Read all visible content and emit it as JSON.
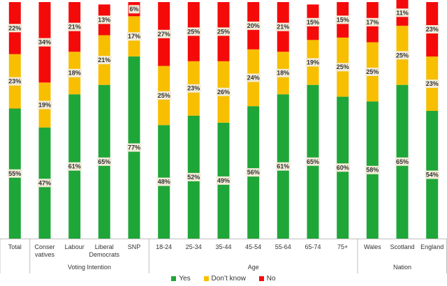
{
  "chart_data": {
    "type": "bar",
    "stacked": true,
    "percent_stacked": true,
    "categories": [
      "Total",
      "Conser vatives",
      "Labour",
      "Liberal Democrats",
      "SNP",
      "18-24",
      "25-34",
      "35-44",
      "45-54",
      "55-64",
      "65-74",
      "75+",
      "Wales",
      "Scotland",
      "England"
    ],
    "groups": [
      {
        "name": "",
        "categories": [
          "Total"
        ]
      },
      {
        "name": "Voting Intention",
        "categories": [
          "Conser vatives",
          "Labour",
          "Liberal Democrats",
          "SNP"
        ]
      },
      {
        "name": "Age",
        "categories": [
          "18-24",
          "25-34",
          "35-44",
          "45-54",
          "55-64",
          "65-74",
          "75+"
        ]
      },
      {
        "name": "Nation",
        "categories": [
          "Wales",
          "Scotland",
          "England"
        ]
      }
    ],
    "series": [
      {
        "name": "Yes",
        "color": "#1fa638",
        "values": [
          55,
          47,
          61,
          65,
          77,
          48,
          52,
          49,
          56,
          61,
          65,
          60,
          58,
          65,
          54
        ],
        "labels": [
          "55%",
          "47%",
          "61%",
          "65%",
          "77%",
          "48%",
          "52%",
          "49%",
          "56%",
          "61%",
          "65%",
          "60%",
          "58%",
          "65%",
          "54%"
        ]
      },
      {
        "name": "Don't know",
        "color": "#f7bf00",
        "values": [
          23,
          19,
          18,
          21,
          17,
          25,
          23,
          26,
          24,
          18,
          19,
          25,
          25,
          25,
          23
        ],
        "labels": [
          "23%",
          "19%",
          "18%",
          "21%",
          "17%",
          "25%",
          "23%",
          "26%",
          "24%",
          "18%",
          "19%",
          "25%",
          "25%",
          "25%",
          "23%"
        ]
      },
      {
        "name": "No",
        "color": "#f50a0a",
        "values": [
          22,
          34,
          21,
          13,
          6,
          27,
          25,
          25,
          20,
          21,
          15,
          15,
          17,
          11,
          23
        ],
        "labels": [
          "22%",
          "34%",
          "21%",
          "13%",
          "6%",
          "27%",
          "25%",
          "25%",
          "20%",
          "21%",
          "15%",
          "15%",
          "17%",
          "11%",
          "23%"
        ]
      }
    ],
    "ylim": [
      0,
      100
    ],
    "grid": false,
    "legend_position": "bottom"
  },
  "legend": {
    "items": [
      {
        "label": "Yes",
        "color": "#1fa638"
      },
      {
        "label": "Don’t know",
        "color": "#f7bf00"
      },
      {
        "label": "No",
        "color": "#f50a0a"
      }
    ]
  }
}
